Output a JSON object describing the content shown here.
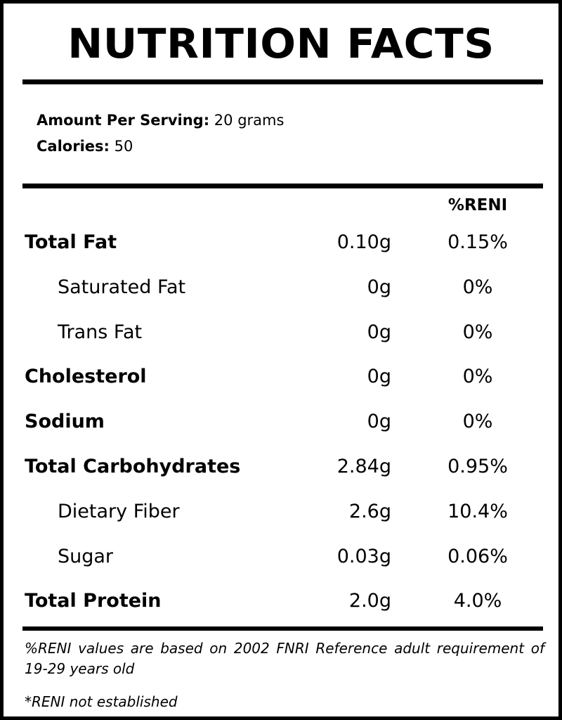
{
  "title": "NUTRITION FACTS",
  "serving": {
    "amount_label": "Amount Per Serving:",
    "amount_value": "20 grams",
    "calories_label": "Calories:",
    "calories_value": "50"
  },
  "table": {
    "column_header": "%RENI",
    "rows": [
      {
        "name": "Total Fat",
        "amount": "0.10g",
        "reni": "0.15%"
      },
      {
        "name": "Saturated Fat",
        "amount": "0g",
        "reni": "0%"
      },
      {
        "name": "Trans Fat",
        "amount": "0g",
        "reni": "0%"
      },
      {
        "name": "Cholesterol",
        "amount": "0g",
        "reni": "0%"
      },
      {
        "name": "Sodium",
        "amount": "0g",
        "reni": "0%"
      },
      {
        "name": "Total Carbohydrates",
        "amount": "2.84g",
        "reni": "0.95%"
      },
      {
        "name": "Dietary Fiber",
        "amount": "2.6g",
        "reni": "10.4%"
      },
      {
        "name": "Sugar",
        "amount": "0.03g",
        "reni": "0.06%"
      },
      {
        "name": "Total Protein",
        "amount": "2.0g",
        "reni": "4.0%"
      }
    ]
  },
  "footnote": "%RENI values are based on 2002 FNRI Reference adult requirement of 19-29 years old",
  "note": "*RENI not established"
}
